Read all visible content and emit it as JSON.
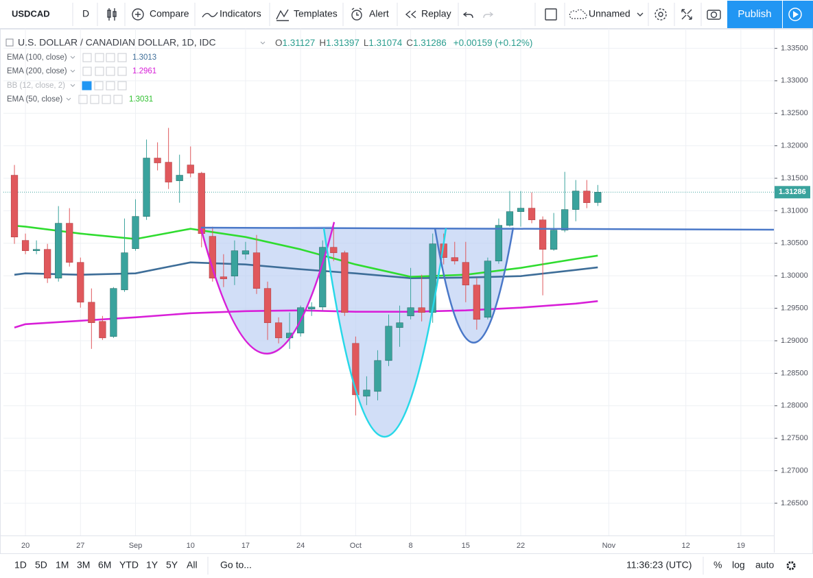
{
  "toolbar": {
    "symbol": "USDCAD",
    "interval": "D",
    "compare": "Compare",
    "indicators": "Indicators",
    "templates": "Templates",
    "alert": "Alert",
    "replay": "Replay",
    "layout": "Unnamed",
    "publish": "Publish"
  },
  "bottom_bar": {
    "ranges": [
      "1D",
      "5D",
      "1M",
      "3M",
      "6M",
      "YTD",
      "1Y",
      "5Y",
      "All"
    ],
    "goto": "Go to...",
    "time": "11:36:23 (UTC)",
    "percent": "%",
    "log": "log",
    "auto": "auto"
  },
  "chart_data": {
    "type": "candlestick",
    "title": "U.S. DOLLAR / CANADIAN DOLLAR, 1D, IDC",
    "ohlc_labels": [
      "O",
      "H",
      "L",
      "C"
    ],
    "change": "+0.00159 (+0.12%)",
    "up_color": "#3aa39d",
    "down_color": "#e0585c",
    "x": [
      "08-17",
      "08-20",
      "08-21",
      "08-22",
      "08-23",
      "08-24",
      "08-27",
      "08-28",
      "08-29",
      "08-30",
      "08-31",
      "09-03",
      "09-04",
      "09-05",
      "09-06",
      "09-07",
      "09-10",
      "09-11",
      "09-12",
      "09-13",
      "09-14",
      "09-17",
      "09-18",
      "09-19",
      "09-20",
      "09-21",
      "09-24",
      "09-25",
      "09-26",
      "09-27",
      "09-28",
      "10-01",
      "10-02",
      "10-03",
      "10-04",
      "10-05",
      "10-08",
      "10-09",
      "10-10",
      "10-11",
      "10-12",
      "10-15",
      "10-16",
      "10-17",
      "10-18",
      "10-19",
      "10-22",
      "10-23",
      "10-24",
      "10-25",
      "10-26",
      "10-29",
      "10-30",
      "10-31"
    ],
    "open": [
      1.31547,
      1.30544,
      1.30385,
      1.30406,
      1.29963,
      1.30808,
      1.30206,
      1.29593,
      1.29298,
      1.29065,
      1.29783,
      1.30417,
      1.30913,
      1.31811,
      1.31747,
      1.31462,
      1.31705,
      1.31578,
      1.30607,
      1.29984,
      1.29995,
      1.30332,
      1.30354,
      1.29805,
      1.29277,
      1.29044,
      1.29118,
      1.29488,
      1.29519,
      1.30438,
      1.30354,
      1.2896,
      1.28147,
      1.28221,
      1.28696,
      1.29203,
      1.29382,
      1.29509,
      1.29435,
      1.30491,
      1.3028,
      1.30206,
      1.29857,
      1.29361,
      1.30227,
      1.30776,
      1.30987,
      1.3104,
      1.3086,
      1.30406,
      1.30702,
      1.31019,
      1.31304,
      1.31127
    ],
    "high": [
      1.31705,
      1.30649,
      1.30544,
      1.30491,
      1.31072,
      1.3104,
      1.3028,
      1.29805,
      1.29382,
      1.29826,
      1.30881,
      1.31177,
      1.32096,
      1.32053,
      1.32275,
      1.31863,
      1.3199,
      1.31599,
      1.30755,
      1.30332,
      1.30544,
      1.30522,
      1.30628,
      1.2991,
      1.29361,
      1.29435,
      1.29541,
      1.29593,
      1.30544,
      1.30829,
      1.30385,
      1.29065,
      1.28453,
      1.28854,
      1.29403,
      1.29541,
      1.30121,
      1.30016,
      1.30649,
      1.30649,
      1.30522,
      1.30522,
      1.29963,
      1.3028,
      1.30881,
      1.31304,
      1.31304,
      1.31283,
      1.30913,
      1.30966,
      1.31599,
      1.31473,
      1.31473,
      1.31397
    ],
    "low": [
      1.30491,
      1.30332,
      1.30332,
      1.29889,
      1.2991,
      1.30142,
      1.29509,
      1.28875,
      1.29013,
      1.29044,
      1.29752,
      1.30385,
      1.3086,
      1.31621,
      1.31335,
      1.31124,
      1.31515,
      1.30438,
      1.2991,
      1.29826,
      1.29857,
      1.30248,
      1.2972,
      1.29013,
      1.2896,
      1.28875,
      1.29065,
      1.29382,
      1.29467,
      1.30227,
      1.29382,
      1.27851,
      1.2801,
      1.28083,
      1.28611,
      1.28907,
      1.29329,
      1.29298,
      1.29277,
      1.30174,
      1.30174,
      1.29593,
      1.29171,
      1.29329,
      1.30185,
      1.30755,
      1.30755,
      1.30808,
      1.29699,
      1.30385,
      1.3067,
      1.30839,
      1.3104,
      1.31074
    ],
    "close": [
      1.30596,
      1.30385,
      1.30406,
      1.29963,
      1.30808,
      1.30206,
      1.29593,
      1.29277,
      1.29044,
      1.29805,
      1.30354,
      1.30913,
      1.31811,
      1.31737,
      1.31441,
      1.31547,
      1.31578,
      1.30649,
      1.29963,
      1.29952,
      1.30385,
      1.30385,
      1.29805,
      1.29277,
      1.29044,
      1.29118,
      1.29509,
      1.29519,
      1.30438,
      1.30354,
      1.29435,
      1.28168,
      1.28242,
      1.28696,
      1.29224,
      1.29277,
      1.29509,
      1.29435,
      1.30491,
      1.3028,
      1.30227,
      1.29857,
      1.29329,
      1.30227,
      1.30776,
      1.30987,
      1.3104,
      1.3086,
      1.30406,
      1.30702,
      1.31019,
      1.31304,
      1.31124,
      1.31286
    ],
    "series": [
      {
        "name": "EMA (100, close)",
        "color": "#3d6d98",
        "x": [
          "08-17",
          "08-20",
          "08-27",
          "09-03",
          "09-10",
          "09-17",
          "09-24",
          "10-01",
          "10-08",
          "10-15",
          "10-22",
          "10-29",
          "10-31"
        ],
        "values": [
          1.30016,
          1.30037,
          1.30016,
          1.30037,
          1.30206,
          1.30174,
          1.301,
          1.30037,
          1.29963,
          1.29973,
          1.29995,
          1.3009,
          1.3013
        ]
      },
      {
        "name": "EMA (200, close)",
        "color": "#d81fd8",
        "x": [
          "08-17",
          "08-20",
          "08-27",
          "09-03",
          "09-10",
          "09-17",
          "09-24",
          "10-01",
          "10-08",
          "10-15",
          "10-22",
          "10-29",
          "10-31"
        ],
        "values": [
          1.29203,
          1.29255,
          1.29308,
          1.29361,
          1.29424,
          1.29456,
          1.29467,
          1.29446,
          1.29446,
          1.29467,
          1.29509,
          1.29572,
          1.2961
        ]
      },
      {
        "name": "EMA (50, close)",
        "color": "#2fdc2f",
        "x": [
          "08-17",
          "08-20",
          "08-27",
          "09-03",
          "09-10",
          "09-17",
          "09-24",
          "10-01",
          "10-08",
          "10-15",
          "10-22",
          "10-29",
          "10-31"
        ],
        "values": [
          1.3077,
          1.30755,
          1.30649,
          1.30565,
          1.30723,
          1.30596,
          1.30406,
          1.30174,
          1.29984,
          1.30016,
          1.30121,
          1.30259,
          1.3031
        ]
      }
    ],
    "hidden_indicator": "BB (12, close, 2)",
    "xlim": [
      "08-16",
      "11-22"
    ],
    "xticks": [
      {
        "value": "08-20",
        "label": "20"
      },
      {
        "value": "08-27",
        "label": "27"
      },
      {
        "value": "09-03",
        "label": "Sep"
      },
      {
        "value": "09-10",
        "label": "10"
      },
      {
        "value": "09-17",
        "label": "17"
      },
      {
        "value": "09-24",
        "label": "24"
      },
      {
        "value": "10-01",
        "label": "Oct"
      },
      {
        "value": "10-08",
        "label": "8"
      },
      {
        "value": "10-15",
        "label": "15"
      },
      {
        "value": "10-22",
        "label": "22"
      },
      {
        "value": "11-01",
        "label": "Nov"
      },
      {
        "value": "11-12",
        "label": "12"
      },
      {
        "value": "11-19",
        "label": "19"
      }
    ],
    "ylim": [
      1.2574,
      1.338
    ],
    "yticks": [
      {
        "value": 1.335,
        "label": "1.33500"
      },
      {
        "value": 1.33,
        "label": "1.33000"
      },
      {
        "value": 1.325,
        "label": "1.32500"
      },
      {
        "value": 1.32,
        "label": "1.32000"
      },
      {
        "value": 1.315,
        "label": "1.31500"
      },
      {
        "value": 1.31,
        "label": "1.31000"
      },
      {
        "value": 1.305,
        "label": "1.30500"
      },
      {
        "value": 1.3,
        "label": "1.30000"
      },
      {
        "value": 1.295,
        "label": "1.29500"
      },
      {
        "value": 1.29,
        "label": "1.29000"
      },
      {
        "value": 1.285,
        "label": "1.28500"
      },
      {
        "value": 1.28,
        "label": "1.28000"
      },
      {
        "value": 1.275,
        "label": "1.27500"
      },
      {
        "value": 1.27,
        "label": "1.27000"
      },
      {
        "value": 1.265,
        "label": "1.26500"
      }
    ],
    "grid": true
  }
}
